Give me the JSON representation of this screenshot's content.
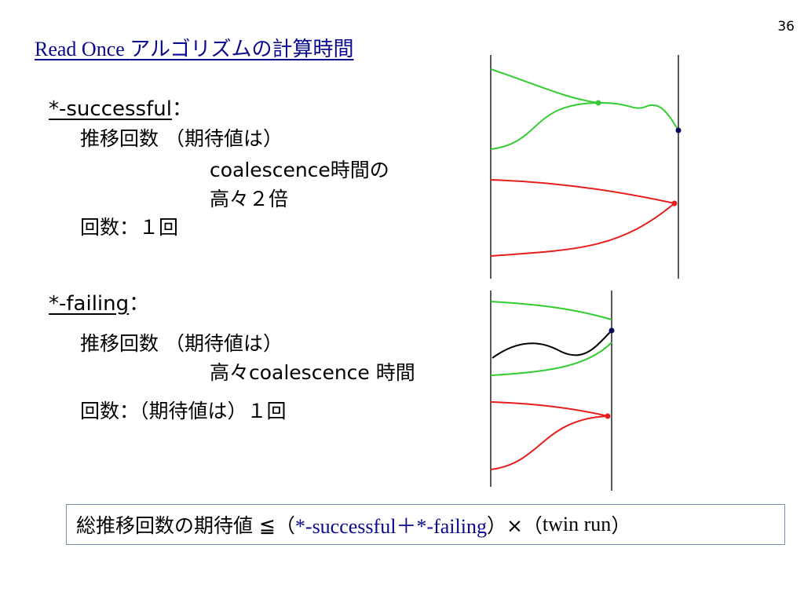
{
  "page_number": "36",
  "title": {
    "latin": "Read Once ",
    "jp": "アルゴリズムの計算時間"
  },
  "successful": {
    "heading": "*-successful",
    "colon": "：",
    "line1": "推移回数 （期待値は）",
    "line2": "coalescence時間の",
    "line3": "高々２倍",
    "line4": "回数：１回"
  },
  "failing": {
    "heading": "*-failing",
    "colon": "：",
    "line1": "推移回数 （期待値は）",
    "line2": "高々coalescence 時間",
    "line3": "回数：（期待値は）１回"
  },
  "summary": {
    "prefix": "総推移回数の期待値 ≦（ ",
    "terms": "*-successful＋*-failing",
    "close": "）",
    "times": "×（",
    "twin": "twin run",
    "end": "）"
  },
  "colors": {
    "title": "#0a0a8c",
    "green": "#33cc33",
    "red": "#e61e1e",
    "black": "#000000",
    "navy_dot": "#0a0a5a",
    "box_border": "#7a8fb0"
  }
}
